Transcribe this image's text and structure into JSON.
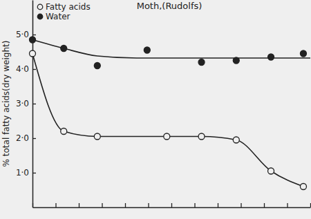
{
  "chart_data": {
    "type": "scatter",
    "title": "Moth,(Rudolfs)",
    "y_label": "% total fatty acids(dry weight)",
    "xlim": [
      0,
      12
    ],
    "xticks": [
      0,
      1,
      2,
      3,
      4,
      5,
      6,
      7,
      8,
      9,
      10,
      11,
      12
    ],
    "ylim": [
      0,
      6
    ],
    "yticks": [
      {
        "value": 1,
        "label": "1·0"
      },
      {
        "value": 2,
        "label": "2·0"
      },
      {
        "value": 3,
        "label": "3·0"
      },
      {
        "value": 4,
        "label": "4·0"
      },
      {
        "value": 5,
        "label": "5·0"
      }
    ],
    "tick_labels": "y",
    "grid": false,
    "legend": "top-left",
    "series": [
      {
        "name": "Fatty acids",
        "color": "#222222",
        "marker": "circle-open",
        "line_style": "solid",
        "x": [
          0,
          1.35,
          2.8,
          5.8,
          7.3,
          8.8,
          10.3,
          11.7
        ],
        "values": [
          4.45,
          2.2,
          2.05,
          2.05,
          2.05,
          1.95,
          1.05,
          0.6
        ]
      },
      {
        "name": "Water",
        "color": "#222222",
        "marker": "circle",
        "line_style": "solid",
        "x": [
          0,
          1.35,
          2.8,
          4.95,
          7.3,
          8.8,
          10.3,
          11.7
        ],
        "values": [
          4.85,
          4.6,
          4.1,
          4.55,
          4.2,
          4.25,
          4.35,
          4.45
        ],
        "fit": {
          "x": [
            0,
            1.35,
            2.8,
            4.5,
            7.3,
            12
          ],
          "values": [
            4.85,
            4.6,
            4.38,
            4.32,
            4.32,
            4.32
          ]
        }
      }
    ]
  }
}
